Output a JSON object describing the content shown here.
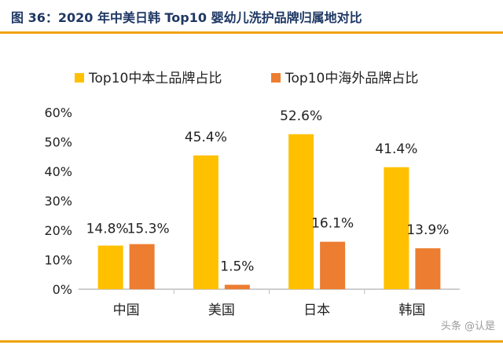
{
  "title": "图 36：2020 年中美日韩 Top10 婴幼儿洗护品牌归属地对比",
  "watermark": "头条 @认是",
  "colors": {
    "title": "#1f3864",
    "rule": "#f0a30a",
    "series_domestic": "#ffc000",
    "series_foreign": "#ed7d31",
    "axis": "#bfbfbf",
    "text": "#222222"
  },
  "chart_data": {
    "type": "bar",
    "categories": [
      "中国",
      "美国",
      "日本",
      "韩国"
    ],
    "series": [
      {
        "name": "Top10中本土品牌占比",
        "values": [
          14.8,
          45.4,
          52.6,
          41.4
        ],
        "labels": [
          "14.8%",
          "45.4%",
          "52.6%",
          "41.4%"
        ]
      },
      {
        "name": "Top10中海外品牌占比",
        "values": [
          15.3,
          1.5,
          16.1,
          13.9
        ],
        "labels": [
          "15.3%",
          "1.5%",
          "16.1%",
          "13.9%"
        ]
      }
    ],
    "ylim": [
      0,
      60
    ],
    "yticks": [
      "0%",
      "10%",
      "20%",
      "30%",
      "40%",
      "50%",
      "60%"
    ],
    "ytick_values": [
      0,
      10,
      20,
      30,
      40,
      50,
      60
    ],
    "legend": "top-center",
    "grid": false
  }
}
